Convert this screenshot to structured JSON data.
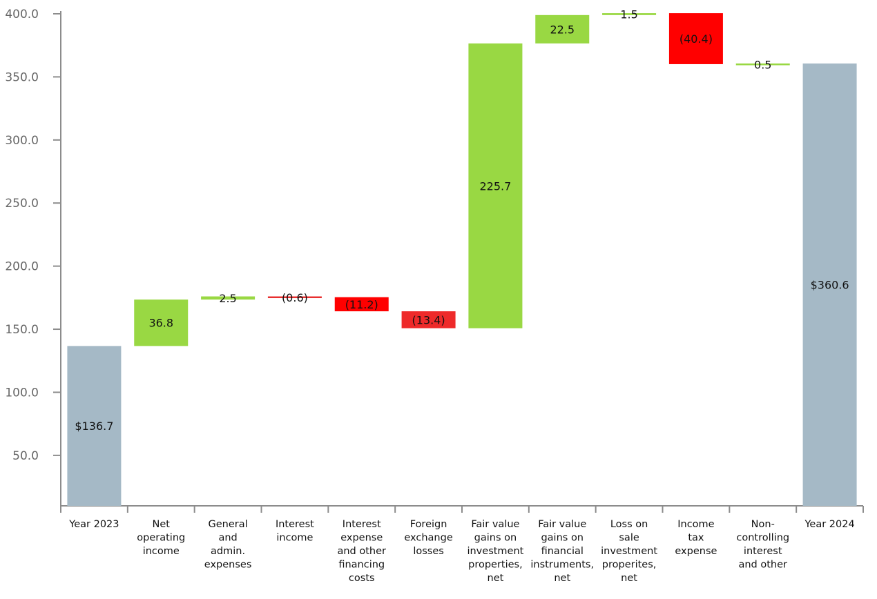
{
  "chart_data": {
    "type": "waterfall",
    "title": "",
    "xlabel": "",
    "ylabel": "",
    "ylim": [
      10,
      400
    ],
    "yticks": [
      "50.0",
      "100.0",
      "150.0",
      "200.0",
      "250.0",
      "300.0",
      "350.0",
      "400.0"
    ],
    "ytick_values": [
      50,
      100,
      150,
      200,
      250,
      300,
      350,
      400
    ],
    "grid": false,
    "colors": {
      "total": "#a5b9c6",
      "increase": "#99d843",
      "decrease": "#ff0000",
      "axis": "#8c8c8c"
    },
    "bars": [
      {
        "category": [
          "Year 2023"
        ],
        "kind": "total",
        "start": 10,
        "end": 136.7,
        "label": "$136.7",
        "color": "#a5b9c6"
      },
      {
        "category": [
          "Net",
          "operating",
          "income"
        ],
        "kind": "increase",
        "start": 136.7,
        "end": 173.5,
        "label": "36.8",
        "color": "#99d843"
      },
      {
        "category": [
          "General",
          "and",
          "admin.",
          "expenses"
        ],
        "kind": "increase",
        "start": 173.5,
        "end": 176.0,
        "label": "2.5",
        "color": "#99d843"
      },
      {
        "category": [
          "Interest",
          "income"
        ],
        "kind": "decrease",
        "start": 176.0,
        "end": 175.4,
        "label": "(0.6)",
        "color": "#e83030"
      },
      {
        "category": [
          "Interest",
          "expense",
          "and other",
          "financing",
          "costs"
        ],
        "kind": "decrease",
        "start": 175.4,
        "end": 164.2,
        "label": "(11.2)",
        "color": "#ff0000"
      },
      {
        "category": [
          "Foreign",
          "exchange",
          "losses"
        ],
        "kind": "decrease",
        "start": 164.2,
        "end": 150.8,
        "label": "(13.4)",
        "color": "#ee2a2a"
      },
      {
        "category": [
          "Fair value",
          "gains on",
          "investment",
          "properties,",
          "net"
        ],
        "kind": "increase",
        "start": 150.8,
        "end": 376.5,
        "label": "225.7",
        "color": "#99d843"
      },
      {
        "category": [
          "Fair value",
          "gains on",
          "financial",
          "instruments,",
          "net"
        ],
        "kind": "increase",
        "start": 376.5,
        "end": 399.0,
        "label": "22.5",
        "color": "#99d843"
      },
      {
        "category": [
          "Loss on",
          "sale",
          "investment",
          "properites,",
          "net"
        ],
        "kind": "increase",
        "start": 399.0,
        "end": 400.5,
        "label": "1.5",
        "color": "#99d843"
      },
      {
        "category": [
          "Income",
          "tax",
          "expense"
        ],
        "kind": "decrease",
        "start": 400.5,
        "end": 360.1,
        "label": "(40.4)",
        "color": "#ff0000"
      },
      {
        "category": [
          "Non-",
          "controlling",
          "interest",
          "and other"
        ],
        "kind": "increase",
        "start": 360.1,
        "end": 360.6,
        "label": "0.5",
        "color": "#99d843"
      },
      {
        "category": [
          "Year 2024"
        ],
        "kind": "total",
        "start": 10,
        "end": 360.6,
        "label": "$360.6",
        "color": "#a5b9c6"
      }
    ]
  }
}
